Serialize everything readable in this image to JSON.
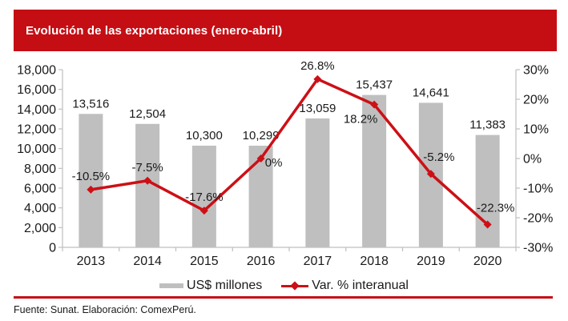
{
  "header": {
    "title": "Evolución de las exportaciones (enero-abril)"
  },
  "chart_data": {
    "type": "combo-bar-line",
    "title": "Evolución de las exportaciones (enero-abril)",
    "categories": [
      "2013",
      "2014",
      "2015",
      "2016",
      "2017",
      "2018",
      "2019",
      "2020"
    ],
    "series": [
      {
        "name": "US$ millones",
        "type": "bar",
        "axis": "left",
        "values": [
          13516,
          12504,
          10300,
          10299,
          13059,
          15437,
          14641,
          11383
        ],
        "labels": [
          "13,516",
          "12,504",
          "10,300",
          "10,299",
          "13,059",
          "15,437",
          "14,641",
          "11,383"
        ]
      },
      {
        "name": "Var. % interanual",
        "type": "line",
        "axis": "right",
        "values": [
          -10.5,
          -7.5,
          -17.6,
          0,
          26.8,
          18.2,
          -5.2,
          -22.3
        ],
        "labels": [
          "-10.5%",
          "-7.5%",
          "-17.6%",
          "0%",
          "26.8%",
          "18.2%",
          "-5.2%",
          "-22.3%"
        ],
        "label_positions": [
          "above",
          "above",
          "above",
          "right-below",
          "above",
          "below-left",
          "above-right",
          "above-right"
        ]
      }
    ],
    "left_axis": {
      "min": 0,
      "max": 18000,
      "step": 2000,
      "tick_labels": [
        "0",
        "2,000",
        "4,000",
        "6,000",
        "8,000",
        "10,000",
        "12,000",
        "14,000",
        "16,000",
        "18,000"
      ]
    },
    "right_axis": {
      "min": -30,
      "max": 30,
      "step": 10,
      "tick_labels": [
        "-30%",
        "-20%",
        "-10%",
        "0%",
        "10%",
        "20%",
        "30%"
      ]
    },
    "grid": false,
    "legend_position": "bottom"
  },
  "footer": {
    "source": "Fuente: Sunat. Elaboración: ComexPerú."
  },
  "colors": {
    "banner_red": "#C40E14",
    "line_red": "#CC1016",
    "bar_gray": "#BFBFBF",
    "axis_gray": "#BFBFBF",
    "text": "#1A1A1A",
    "title_text": "#FFFFFF"
  }
}
